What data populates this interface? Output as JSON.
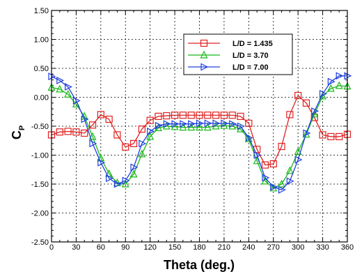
{
  "chart_data": {
    "type": "line",
    "xlabel": "Theta (deg.)",
    "ylabel": "C",
    "ylabel_sub": "P",
    "xlim": [
      0,
      360
    ],
    "ylim": [
      -2.5,
      1.5
    ],
    "xticks": [
      0,
      30,
      60,
      90,
      120,
      150,
      180,
      210,
      240,
      270,
      300,
      330,
      360
    ],
    "xtick_labels": [
      "0",
      "30",
      "60",
      "90",
      "120",
      "150",
      "180",
      "210",
      "240",
      "270",
      "300",
      "330",
      "360"
    ],
    "yticks": [
      1.5,
      1.0,
      0.5,
      0.0,
      -0.5,
      -1.0,
      -1.5,
      -2.0,
      -2.5
    ],
    "ytick_labels": [
      "1.50",
      "1.00",
      "0.50",
      "0.00",
      "-0.50",
      "-1.00",
      "-1.50",
      "-2.00",
      "-2.50"
    ],
    "grid": true,
    "legend_position": "top-right",
    "x": [
      0,
      10,
      20,
      30,
      40,
      50,
      60,
      70,
      80,
      90,
      100,
      110,
      120,
      130,
      140,
      150,
      160,
      170,
      180,
      190,
      200,
      210,
      220,
      230,
      240,
      250,
      260,
      270,
      280,
      290,
      300,
      310,
      320,
      330,
      340,
      350,
      360
    ],
    "series": [
      {
        "name": "L/D = 1.435",
        "color": "#e02020",
        "marker": "square",
        "values": [
          -0.65,
          -0.6,
          -0.59,
          -0.6,
          -0.62,
          -0.48,
          -0.3,
          -0.38,
          -0.65,
          -0.86,
          -0.8,
          -0.55,
          -0.4,
          -0.33,
          -0.32,
          -0.31,
          -0.31,
          -0.31,
          -0.31,
          -0.31,
          -0.31,
          -0.31,
          -0.31,
          -0.33,
          -0.45,
          -0.9,
          -1.17,
          -1.15,
          -0.85,
          -0.3,
          0.03,
          -0.1,
          -0.35,
          -0.65,
          -0.68,
          -0.68,
          -0.64
        ]
      },
      {
        "name": "L/D = 3.70",
        "color": "#18b818",
        "marker": "triangle-up",
        "values": [
          0.17,
          0.14,
          0.05,
          -0.12,
          -0.33,
          -0.68,
          -1.05,
          -1.32,
          -1.48,
          -1.5,
          -1.33,
          -0.98,
          -0.68,
          -0.53,
          -0.5,
          -0.51,
          -0.52,
          -0.52,
          -0.52,
          -0.52,
          -0.5,
          -0.49,
          -0.5,
          -0.55,
          -0.72,
          -1.1,
          -1.45,
          -1.57,
          -1.5,
          -1.27,
          -0.94,
          -0.64,
          -0.29,
          0.02,
          0.15,
          0.2,
          0.19
        ]
      },
      {
        "name": "L/D = 7.00",
        "color": "#2040e0",
        "marker": "triangle-right",
        "values": [
          0.36,
          0.29,
          0.18,
          -0.06,
          -0.38,
          -0.8,
          -1.13,
          -1.4,
          -1.5,
          -1.44,
          -1.21,
          -0.8,
          -0.59,
          -0.49,
          -0.46,
          -0.46,
          -0.46,
          -0.46,
          -0.45,
          -0.45,
          -0.45,
          -0.45,
          -0.46,
          -0.5,
          -0.7,
          -1.0,
          -1.39,
          -1.55,
          -1.6,
          -1.45,
          -1.08,
          -0.62,
          -0.24,
          0.06,
          0.27,
          0.37,
          0.37
        ]
      }
    ]
  }
}
